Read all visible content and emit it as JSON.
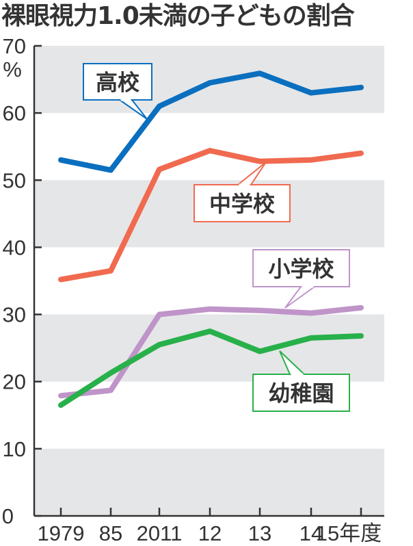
{
  "title": "裸眼視力1.0未満の子どもの割合",
  "chart_data": {
    "type": "line",
    "title": "裸眼視力1.0未満の子どもの割合",
    "xlabel": "年度",
    "ylabel": "%",
    "ylim": [
      0,
      70
    ],
    "yticks": [
      0,
      10,
      20,
      30,
      40,
      50,
      60,
      70
    ],
    "y_unit": "%",
    "categories": [
      "1979",
      "85",
      "2011",
      "12",
      "13",
      "14",
      "15"
    ],
    "x_suffix": "年度",
    "grid": "alternating bands",
    "legend": "inline callout labels",
    "series": [
      {
        "name": "高校",
        "color": "#0a6fbf",
        "values": [
          53.0,
          51.5,
          61.0,
          64.5,
          65.9,
          63.0,
          63.8
        ]
      },
      {
        "name": "中学校",
        "color": "#f06a50",
        "values": [
          35.2,
          36.5,
          51.6,
          54.4,
          52.8,
          53.0,
          54.0
        ]
      },
      {
        "name": "小学校",
        "color": "#bf94c9",
        "values": [
          17.9,
          18.7,
          30.0,
          30.8,
          30.6,
          30.2,
          31.0
        ]
      },
      {
        "name": "幼稚園",
        "color": "#28b04a",
        "values": [
          16.5,
          21.3,
          25.5,
          27.5,
          24.5,
          26.5,
          26.8
        ]
      }
    ]
  },
  "colors": {
    "band": "#e5e6e8",
    "axis": "#333333",
    "text": "#333333"
  }
}
